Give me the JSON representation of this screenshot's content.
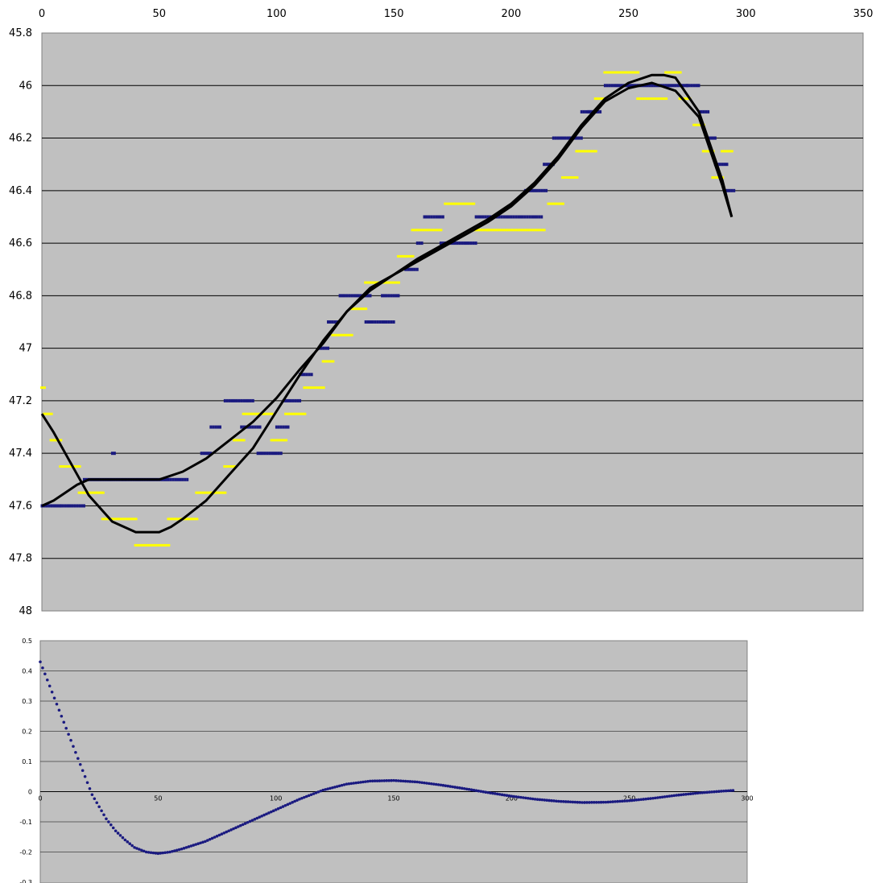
{
  "chart_data": [
    {
      "type": "scatter",
      "title": "",
      "xlabel": "",
      "ylabel": "",
      "x_axis": {
        "min": 0,
        "max": 350,
        "position": "top",
        "ticks": [
          0,
          50,
          100,
          150,
          200,
          250,
          300,
          350
        ]
      },
      "y_axis": {
        "min": 45.8,
        "max": 48,
        "reversed": true,
        "ticks": [
          "45.8",
          "46",
          "46.2",
          "46.4",
          "46.6",
          "46.8",
          "47",
          "47.2",
          "47.4",
          "47.6",
          "47.8",
          "48"
        ]
      },
      "grid": true,
      "legend": "none",
      "colors": {
        "plot_bg": "#c0c0c0",
        "blue": "#1a1a80",
        "yellow": "#ffff00",
        "curve": "#000000"
      },
      "series": [
        {
          "style": "blue-points",
          "segments": [
            [
              0,
              8,
              47.6
            ],
            [
              8,
              18,
              47.6
            ],
            [
              18,
              30,
              47.5
            ],
            [
              30,
              31,
              47.4
            ],
            [
              31,
              62,
              47.5
            ],
            [
              68,
              72,
              47.4
            ],
            [
              72,
              76,
              47.3
            ],
            [
              78,
              90,
              47.2
            ],
            [
              85,
              93,
              47.3
            ],
            [
              92,
              102,
              47.4
            ],
            [
              100,
              105,
              47.3
            ],
            [
              103,
              110,
              47.2
            ],
            [
              110,
              115,
              47.1
            ],
            [
              118,
              122,
              47.0
            ],
            [
              122,
              126,
              46.9
            ],
            [
              127,
              140,
              46.8
            ],
            [
              138,
              150,
              46.9
            ],
            [
              145,
              152,
              46.8
            ],
            [
              155,
              160,
              46.7
            ],
            [
              160,
              162,
              46.6
            ],
            [
              163,
              171,
              46.5
            ],
            [
              170,
              185,
              46.6
            ],
            [
              185,
              213,
              46.5
            ],
            [
              206,
              215,
              46.4
            ],
            [
              214,
              218,
              46.3
            ],
            [
              218,
              225,
              46.2
            ],
            [
              225,
              230,
              46.2
            ],
            [
              230,
              236,
              46.1
            ],
            [
              233,
              238,
              46.1
            ],
            [
              240,
              275,
              46.0
            ],
            [
              275,
              280,
              46.0
            ],
            [
              280,
              284,
              46.1
            ],
            [
              284,
              287,
              46.2
            ],
            [
              287,
              292,
              46.3
            ],
            [
              292,
              295,
              46.4
            ]
          ]
        },
        {
          "style": "yellow-points",
          "segments": [
            [
              0,
              1,
              47.15
            ],
            [
              1,
              4,
              47.25
            ],
            [
              4,
              8,
              47.35
            ],
            [
              8,
              16,
              47.45
            ],
            [
              16,
              26,
              47.55
            ],
            [
              26,
              40,
              47.65
            ],
            [
              40,
              54,
              47.75
            ],
            [
              54,
              66,
              47.65
            ],
            [
              66,
              78,
              47.55
            ],
            [
              78,
              82,
              47.45
            ],
            [
              82,
              86,
              47.35
            ],
            [
              86,
              98,
              47.25
            ],
            [
              98,
              104,
              47.35
            ],
            [
              104,
              112,
              47.25
            ],
            [
              112,
              120,
              47.15
            ],
            [
              120,
              124,
              47.05
            ],
            [
              124,
              132,
              46.95
            ],
            [
              132,
              138,
              46.85
            ],
            [
              138,
              152,
              46.75
            ],
            [
              152,
              158,
              46.65
            ],
            [
              158,
              170,
              46.55
            ],
            [
              172,
              184,
              46.45
            ],
            [
              184,
              190,
              46.55
            ],
            [
              190,
              214,
              46.55
            ],
            [
              216,
              222,
              46.45
            ],
            [
              222,
              228,
              46.35
            ],
            [
              228,
              236,
              46.25
            ],
            [
              236,
              240,
              46.05
            ],
            [
              240,
              254,
              45.95
            ],
            [
              254,
              266,
              46.05
            ],
            [
              266,
              272,
              45.95
            ],
            [
              272,
              276,
              46.05
            ],
            [
              278,
              282,
              46.15
            ],
            [
              282,
              286,
              46.25
            ],
            [
              286,
              290,
              46.35
            ],
            [
              290,
              294,
              46.25
            ]
          ]
        },
        {
          "style": "black-curve",
          "points": [
            [
              0,
              47.6
            ],
            [
              5,
              47.58
            ],
            [
              10,
              47.55
            ],
            [
              15,
              47.52
            ],
            [
              20,
              47.5
            ],
            [
              30,
              47.5
            ],
            [
              40,
              47.5
            ],
            [
              50,
              47.5
            ],
            [
              60,
              47.47
            ],
            [
              70,
              47.42
            ],
            [
              80,
              47.35
            ],
            [
              90,
              47.28
            ],
            [
              100,
              47.19
            ],
            [
              110,
              47.08
            ],
            [
              120,
              46.98
            ],
            [
              130,
              46.86
            ],
            [
              140,
              46.77
            ],
            [
              150,
              46.72
            ],
            [
              160,
              46.67
            ],
            [
              170,
              46.62
            ],
            [
              180,
              46.57
            ],
            [
              190,
              46.52
            ],
            [
              200,
              46.46
            ],
            [
              210,
              46.38
            ],
            [
              220,
              46.28
            ],
            [
              230,
              46.16
            ],
            [
              240,
              46.06
            ],
            [
              250,
              46.01
            ],
            [
              260,
              45.99
            ],
            [
              270,
              46.02
            ],
            [
              280,
              46.12
            ],
            [
              290,
              46.38
            ],
            [
              294,
              46.5
            ]
          ]
        },
        {
          "style": "black-curve",
          "points": [
            [
              0,
              47.25
            ],
            [
              5,
              47.32
            ],
            [
              10,
              47.4
            ],
            [
              15,
              47.48
            ],
            [
              20,
              47.56
            ],
            [
              30,
              47.66
            ],
            [
              40,
              47.7
            ],
            [
              50,
              47.7
            ],
            [
              55,
              47.68
            ],
            [
              60,
              47.65
            ],
            [
              70,
              47.58
            ],
            [
              80,
              47.48
            ],
            [
              90,
              47.38
            ],
            [
              100,
              47.24
            ],
            [
              110,
              47.1
            ],
            [
              120,
              46.97
            ],
            [
              130,
              46.86
            ],
            [
              140,
              46.78
            ],
            [
              150,
              46.72
            ],
            [
              160,
              46.66
            ],
            [
              170,
              46.61
            ],
            [
              180,
              46.56
            ],
            [
              190,
              46.51
            ],
            [
              200,
              46.45
            ],
            [
              210,
              46.37
            ],
            [
              220,
              46.27
            ],
            [
              230,
              46.15
            ],
            [
              240,
              46.05
            ],
            [
              250,
              45.99
            ],
            [
              260,
              45.96
            ],
            [
              265,
              45.96
            ],
            [
              270,
              45.97
            ],
            [
              280,
              46.1
            ],
            [
              290,
              46.36
            ],
            [
              294,
              46.5
            ]
          ]
        }
      ]
    },
    {
      "type": "scatter",
      "title": "",
      "xlabel": "",
      "ylabel": "",
      "x_axis": {
        "min": 0,
        "max": 300,
        "position": "at y=0",
        "ticks": [
          0,
          50,
          100,
          150,
          200,
          250,
          300
        ]
      },
      "y_axis": {
        "min": -0.3,
        "max": 0.5,
        "ticks": [
          "0.5",
          "0.4",
          "0.3",
          "0.2",
          "0.1",
          "0",
          "-0.1",
          "-0.2",
          "-0.3"
        ]
      },
      "grid": true,
      "legend": "none",
      "colors": {
        "plot_bg": "#c0c0c0",
        "points": "#1a1a80"
      },
      "series": [
        {
          "style": "blue-points",
          "points": [
            [
              0,
              0.43
            ],
            [
              2,
              0.39
            ],
            [
              4,
              0.35
            ],
            [
              6,
              0.31
            ],
            [
              8,
              0.27
            ],
            [
              10,
              0.23
            ],
            [
              12,
              0.19
            ],
            [
              14,
              0.15
            ],
            [
              16,
              0.11
            ],
            [
              18,
              0.07
            ],
            [
              20,
              0.03
            ],
            [
              22,
              -0.01
            ],
            [
              25,
              -0.05
            ],
            [
              28,
              -0.09
            ],
            [
              32,
              -0.13
            ],
            [
              36,
              -0.16
            ],
            [
              40,
              -0.185
            ],
            [
              45,
              -0.2
            ],
            [
              50,
              -0.205
            ],
            [
              55,
              -0.2
            ],
            [
              60,
              -0.19
            ],
            [
              70,
              -0.165
            ],
            [
              80,
              -0.13
            ],
            [
              90,
              -0.095
            ],
            [
              100,
              -0.06
            ],
            [
              110,
              -0.025
            ],
            [
              120,
              0.005
            ],
            [
              130,
              0.025
            ],
            [
              140,
              0.035
            ],
            [
              150,
              0.037
            ],
            [
              160,
              0.032
            ],
            [
              170,
              0.022
            ],
            [
              180,
              0.01
            ],
            [
              190,
              -0.003
            ],
            [
              200,
              -0.015
            ],
            [
              210,
              -0.025
            ],
            [
              220,
              -0.032
            ],
            [
              230,
              -0.036
            ],
            [
              240,
              -0.035
            ],
            [
              250,
              -0.03
            ],
            [
              260,
              -0.022
            ],
            [
              270,
              -0.012
            ],
            [
              280,
              -0.004
            ],
            [
              290,
              0.002
            ],
            [
              294,
              0.004
            ]
          ]
        }
      ]
    }
  ]
}
